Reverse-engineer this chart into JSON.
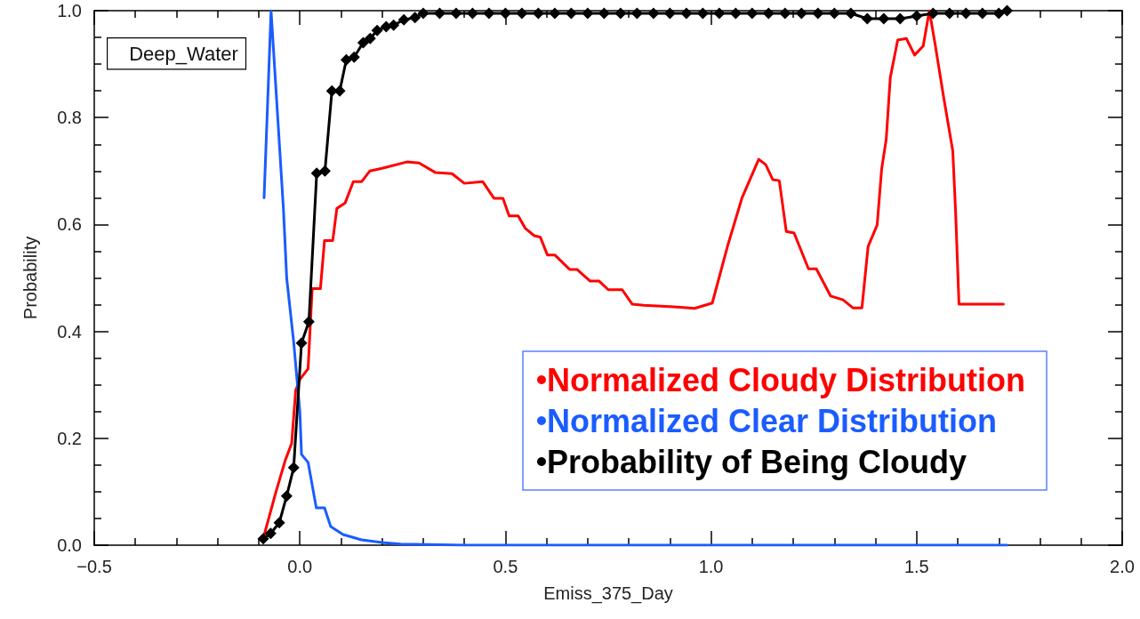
{
  "chart_data": {
    "type": "line",
    "xlabel": "Emiss_375_Day",
    "ylabel": "Probability",
    "annotations": [
      "Deep_Water"
    ],
    "xlim": [
      -0.5,
      2.0
    ],
    "ylim": [
      0,
      1.0
    ],
    "xticks": [
      {
        "value": -0.5,
        "label": "−0.5"
      },
      {
        "value": 0,
        "label": "0.0"
      },
      {
        "value": 0.5,
        "label": "0.5"
      },
      {
        "value": 1.0,
        "label": "1.0"
      },
      {
        "value": 1.5,
        "label": "1.5"
      },
      {
        "value": 2.0,
        "label": "2.0"
      }
    ],
    "yticks": [
      {
        "value": 0,
        "label": "0.0"
      },
      {
        "value": 0.2,
        "label": "0.2"
      },
      {
        "value": 0.4,
        "label": "0.4"
      },
      {
        "value": 0.6,
        "label": "0.6"
      },
      {
        "value": 0.8,
        "label": "0.8"
      },
      {
        "value": 1.0,
        "label": "1.0"
      }
    ],
    "grid": false,
    "legend": "bottom right",
    "line_style": "solid",
    "series": [
      {
        "name": "Normalized Cloudy Distribution",
        "color": "#ff0000",
        "marker": "none",
        "x": [
          -0.09,
          -0.058,
          -0.035,
          -0.02,
          -0.01,
          0,
          0.02,
          0.03,
          0.05,
          0.06,
          0.08,
          0.09,
          0.11,
          0.13,
          0.15,
          0.17,
          0.2,
          0.26,
          0.29,
          0.33,
          0.37,
          0.4,
          0.445,
          0.472,
          0.494,
          0.509,
          0.531,
          0.548,
          0.57,
          0.585,
          0.602,
          0.62,
          0.656,
          0.674,
          0.706,
          0.728,
          0.75,
          0.784,
          0.808,
          0.836,
          0.91,
          0.96,
          1.003,
          1.04,
          1.075,
          1.116,
          1.133,
          1.15,
          1.166,
          1.183,
          1.202,
          1.237,
          1.256,
          1.291,
          1.321,
          1.345,
          1.367,
          1.382,
          1.404,
          1.415,
          1.426,
          1.436,
          1.454,
          1.475,
          1.495,
          1.516,
          1.531,
          1.545,
          1.566,
          1.588,
          1.595,
          1.603,
          1.711
        ],
        "values": [
          0.01,
          0.1,
          0.16,
          0.19,
          0.29,
          0.31,
          0.33,
          0.48,
          0.48,
          0.57,
          0.57,
          0.63,
          0.64,
          0.68,
          0.68,
          0.7,
          0.705,
          0.717,
          0.715,
          0.697,
          0.695,
          0.677,
          0.68,
          0.649,
          0.649,
          0.616,
          0.616,
          0.593,
          0.579,
          0.576,
          0.543,
          0.543,
          0.516,
          0.516,
          0.494,
          0.494,
          0.478,
          0.478,
          0.451,
          0.449,
          0.446,
          0.443,
          0.453,
          0.559,
          0.649,
          0.722,
          0.712,
          0.684,
          0.682,
          0.587,
          0.584,
          0.517,
          0.517,
          0.466,
          0.459,
          0.444,
          0.444,
          0.559,
          0.599,
          0.704,
          0.759,
          0.875,
          0.945,
          0.948,
          0.917,
          0.934,
          1.0,
          0.937,
          0.837,
          0.737,
          0.62,
          0.451,
          0.451
        ]
      },
      {
        "name": "Normalized Clear Distribution",
        "color": "#1a5cff",
        "marker": "none",
        "x": [
          -0.087,
          -0.07,
          -0.04,
          -0.032,
          -0.015,
          0,
          0.004,
          0.02,
          0.04,
          0.06,
          0.075,
          0.105,
          0.15,
          0.2,
          0.245,
          0.4,
          0.8,
          1.2,
          1.72
        ],
        "values": [
          0.65,
          1.0,
          0.63,
          0.5,
          0.38,
          0.25,
          0.17,
          0.155,
          0.07,
          0.07,
          0.035,
          0.02,
          0.01,
          0.005,
          0.002,
          0,
          0,
          0,
          0
        ]
      },
      {
        "name": "Probability of Being Cloudy",
        "color": "#000000",
        "marker": "diamond",
        "x": [
          -0.089,
          -0.071,
          -0.05,
          -0.032,
          -0.015,
          0.004,
          0.022,
          0.041,
          0.061,
          0.078,
          0.097,
          0.113,
          0.132,
          0.154,
          0.171,
          0.188,
          0.21,
          0.228,
          0.253,
          0.28,
          0.3,
          0.34,
          0.38,
          0.42,
          0.46,
          0.5,
          0.54,
          0.58,
          0.62,
          0.66,
          0.7,
          0.74,
          0.78,
          0.82,
          0.86,
          0.9,
          0.94,
          0.98,
          1.02,
          1.06,
          1.1,
          1.14,
          1.18,
          1.22,
          1.26,
          1.3,
          1.34,
          1.38,
          1.42,
          1.46,
          1.5,
          1.54,
          1.58,
          1.62,
          1.66,
          1.7,
          1.72
        ],
        "values": [
          0.012,
          0.022,
          0.042,
          0.092,
          0.145,
          0.378,
          0.418,
          0.696,
          0.7,
          0.85,
          0.85,
          0.908,
          0.913,
          0.94,
          0.948,
          0.963,
          0.97,
          0.973,
          0.983,
          0.987,
          0.995,
          0.995,
          0.995,
          0.995,
          0.995,
          0.995,
          0.995,
          0.995,
          0.995,
          0.995,
          0.995,
          0.995,
          0.995,
          0.995,
          0.995,
          0.995,
          0.995,
          0.995,
          0.995,
          0.995,
          0.995,
          0.995,
          0.995,
          0.995,
          0.995,
          0.995,
          0.995,
          0.985,
          0.985,
          0.985,
          0.99,
          0.995,
          0.995,
          0.995,
          0.995,
          0.995,
          1.0
        ]
      }
    ]
  }
}
